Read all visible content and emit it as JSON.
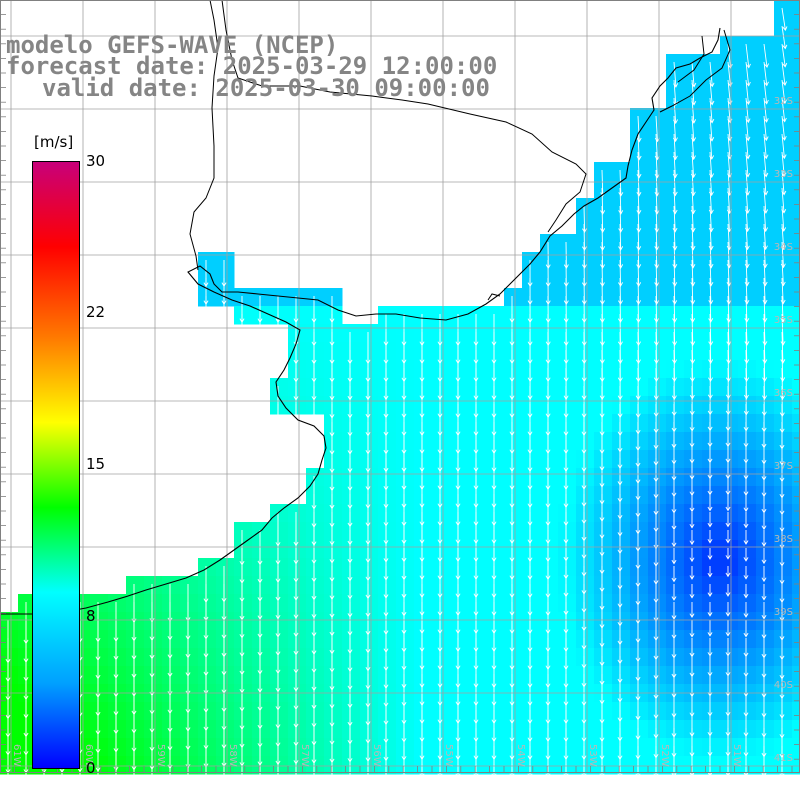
{
  "title": {
    "line1": "modelo GEFS-WAVE (NCEP)",
    "line2": "forecast date: 2025-03-29 12:00:00",
    "line3": "valid date: 2025-03-30 09:00:00"
  },
  "colorbar": {
    "unit": "[m/s]",
    "ticks": [
      "30",
      "22",
      "15",
      "8",
      "0"
    ],
    "colors": [
      "#c8007a",
      "#ff0000",
      "#ff7a00",
      "#ffff00",
      "#00ff00",
      "#00ffff",
      "#00a0ff",
      "#0000ff"
    ]
  },
  "map": {
    "latitude_labels": [
      "32S",
      "33S",
      "34S",
      "35S",
      "36S",
      "37S",
      "38S",
      "39S",
      "40S",
      "41S"
    ],
    "longitude_labels": [
      "61W",
      "60W",
      "59W",
      "58W",
      "57W",
      "56W",
      "55W",
      "54W",
      "53W",
      "52W",
      "51W"
    ],
    "field": "wind speed",
    "wind_range_ms": [
      1,
      12
    ]
  }
}
